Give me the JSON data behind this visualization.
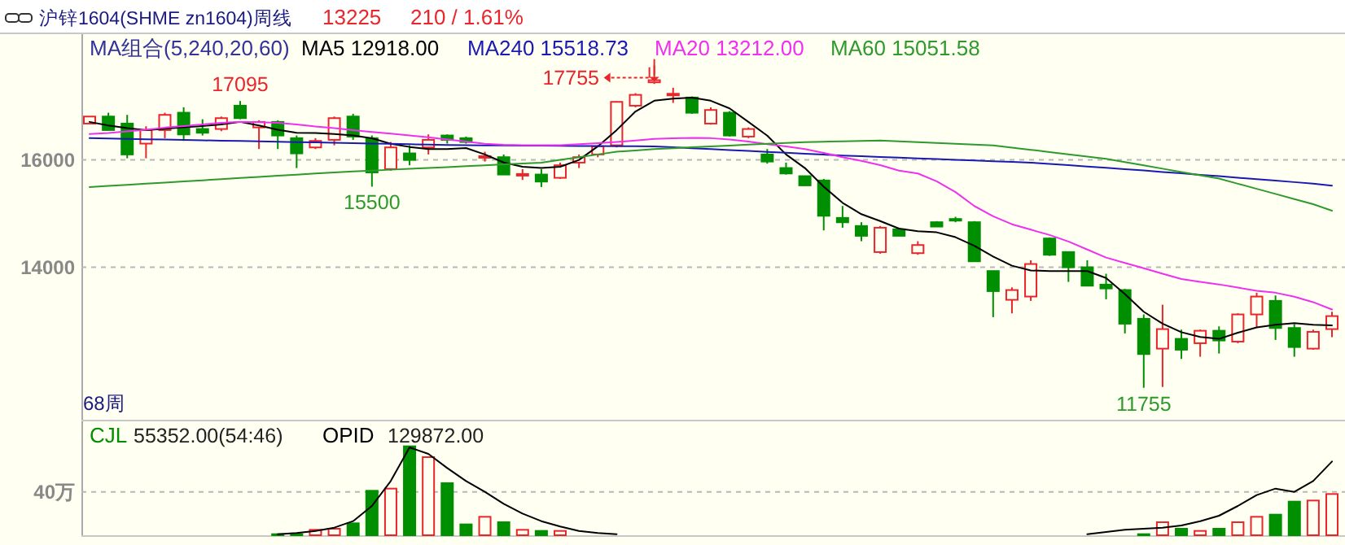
{
  "chart_data": [
    {
      "type": "candlestick",
      "title": "沪锌1604(SHME zn1604)周线",
      "legend_title": "MA组合(5,240,20,60)",
      "legend": "top left",
      "grid": "y",
      "tick_labels": "y",
      "ylim": [
        11160,
        18340
      ],
      "yticks": [
        14000,
        16000
      ],
      "categories": [
        null,
        null,
        null,
        null,
        null,
        null,
        null,
        null,
        null,
        null,
        null,
        null,
        null,
        null,
        null,
        null,
        null,
        null,
        null,
        null,
        null,
        null,
        null,
        null,
        null,
        null,
        null,
        null,
        null,
        null,
        null,
        null,
        null,
        null,
        null,
        null,
        null,
        null,
        null,
        null,
        null,
        null,
        null,
        null,
        null,
        null,
        null,
        null,
        null,
        null,
        null,
        null,
        null,
        null,
        null,
        null,
        null,
        null,
        null,
        null,
        null,
        null,
        null,
        null,
        null,
        null,
        null
      ],
      "ohlc": [
        [
          16675,
          16810,
          16670,
          16806
        ],
        [
          16806,
          16877,
          16554,
          16554
        ],
        [
          16675,
          16837,
          16029,
          16100
        ],
        [
          16302,
          16625,
          16029,
          16554
        ],
        [
          16554,
          16877,
          16403,
          16837
        ],
        [
          16877,
          16978,
          16352,
          16473
        ],
        [
          16574,
          16756,
          16453,
          16504
        ],
        [
          16574,
          16806,
          16534,
          16776
        ],
        [
          17008,
          17095,
          16756,
          16776
        ],
        [
          16604,
          16736,
          16201,
          16705
        ],
        [
          16705,
          16736,
          16201,
          16453
        ],
        [
          16403,
          16453,
          15847,
          16120
        ],
        [
          16231,
          16403,
          16201,
          16352
        ],
        [
          16372,
          16806,
          16271,
          16776
        ],
        [
          16806,
          16857,
          16372,
          16433
        ],
        [
          16403,
          16453,
          15500,
          15766
        ],
        [
          15827,
          16332,
          15797,
          16231
        ],
        [
          16120,
          16271,
          15898,
          15998
        ],
        [
          16231,
          16473,
          16100,
          16372
        ],
        [
          16453,
          16473,
          16302,
          16372
        ],
        [
          16403,
          16433,
          16302,
          16332
        ],
        [
          16049,
          16150,
          15968,
          16069
        ],
        [
          16049,
          16100,
          15726,
          15726
        ],
        [
          15716,
          15827,
          15625,
          15736
        ],
        [
          15726,
          15827,
          15493,
          15595
        ],
        [
          15665,
          15948,
          15645,
          15898
        ],
        [
          15948,
          16100,
          15847,
          16049
        ],
        [
          16100,
          16271,
          16049,
          16251
        ],
        [
          16271,
          17090,
          16231,
          17079
        ],
        [
          17008,
          17241,
          16978,
          17210
        ],
        [
          17443,
          17755,
          17413,
          17483
        ],
        [
          17210,
          17342,
          17059,
          17230
        ],
        [
          17160,
          17180,
          16857,
          16877
        ],
        [
          16675,
          16978,
          16655,
          16928
        ],
        [
          16877,
          16907,
          16433,
          16453
        ],
        [
          16433,
          16604,
          16403,
          16574
        ],
        [
          16100,
          16201,
          15928,
          15968
        ],
        [
          15847,
          15948,
          15726,
          15746
        ],
        [
          15696,
          15696,
          15524,
          15524
        ],
        [
          15615,
          15645,
          14686,
          14958
        ],
        [
          14918,
          15140,
          14736,
          14837
        ],
        [
          14767,
          14838,
          14484,
          14585
        ],
        [
          14282,
          14767,
          14252,
          14736
        ],
        [
          14706,
          14736,
          14585,
          14585
        ],
        [
          14262,
          14484,
          14232,
          14413
        ],
        [
          14838,
          14858,
          14757,
          14757
        ],
        [
          14898,
          14939,
          14838,
          14878
        ],
        [
          14838,
          14858,
          14110,
          14110
        ],
        [
          13929,
          13929,
          13070,
          13555
        ],
        [
          13393,
          13625,
          13141,
          13575
        ],
        [
          13454,
          14130,
          13373,
          14060
        ],
        [
          14535,
          14555,
          14211,
          14232
        ],
        [
          14282,
          14282,
          13727,
          13999
        ],
        [
          13999,
          14130,
          13656,
          13656
        ],
        [
          13676,
          13878,
          13403,
          13605
        ],
        [
          13575,
          13595,
          12767,
          12949
        ],
        [
          13040,
          13121,
          11755,
          12383
        ],
        [
          12484,
          13302,
          11770,
          12848
        ],
        [
          12666,
          12838,
          12292,
          12464
        ],
        [
          12585,
          12838,
          12333,
          12817
        ],
        [
          12817,
          12898,
          12393,
          12636
        ],
        [
          12615,
          13141,
          12585,
          13121
        ],
        [
          13121,
          13525,
          12888,
          13454
        ],
        [
          13373,
          13474,
          12646,
          12868
        ],
        [
          12868,
          12939,
          12333,
          12514
        ],
        [
          12484,
          12838,
          12464,
          12797
        ],
        [
          12848,
          13171,
          12696,
          13090
        ]
      ],
      "series": [
        {
          "type": "line",
          "name": "MA5 12918.00",
          "color": "#000000",
          "values": [
            16706,
            16640,
            16590,
            16554,
            16580,
            16604,
            16630,
            16660,
            16706,
            16640,
            16560,
            16504,
            16500,
            16480,
            16453,
            16400,
            16300,
            16240,
            16201,
            16201,
            16220,
            16100,
            15950,
            15870,
            15847,
            15870,
            15998,
            16251,
            16554,
            16900,
            17100,
            17140,
            17160,
            17100,
            16958,
            16706,
            16450,
            16100,
            15847,
            15500,
            15200,
            14988,
            14860,
            14720,
            14670,
            14650,
            14560,
            14400,
            14200,
            14029,
            13940,
            13929,
            13929,
            13929,
            13800,
            13500,
            13171,
            12950,
            12790,
            12700,
            12666,
            12780,
            12880,
            12930,
            12960,
            12930,
            12918
          ]
        },
        {
          "type": "line",
          "name": "MA240 15518.73",
          "color": "#1a1ab0",
          "values": [
            16403,
            16396,
            16390,
            16383,
            16377,
            16370,
            16363,
            16357,
            16350,
            16343,
            16337,
            16330,
            16324,
            16317,
            16310,
            16304,
            16297,
            16290,
            16284,
            16277,
            16271,
            16269,
            16267,
            16265,
            16263,
            16260,
            16258,
            16256,
            16254,
            16252,
            16250,
            16233,
            16216,
            16199,
            16182,
            16165,
            16148,
            16131,
            16114,
            16097,
            16080,
            16067,
            16054,
            16041,
            16027,
            16014,
            16001,
            15988,
            15974,
            15961,
            15948,
            15924,
            15900,
            15875,
            15851,
            15827,
            15801,
            15774,
            15748,
            15721,
            15695,
            15667,
            15640,
            15612,
            15585,
            15557,
            15519
          ]
        },
        {
          "type": "line",
          "name": "MA20 13212.00",
          "color": "#f030f0",
          "values": [
            16480,
            16500,
            16530,
            16560,
            16600,
            16630,
            16660,
            16690,
            16706,
            16700,
            16690,
            16660,
            16620,
            16590,
            16554,
            16520,
            16490,
            16453,
            16420,
            16380,
            16340,
            16300,
            16280,
            16271,
            16271,
            16271,
            16290,
            16310,
            16332,
            16360,
            16390,
            16400,
            16410,
            16403,
            16380,
            16340,
            16290,
            16251,
            16200,
            16130,
            16049,
            15980,
            15900,
            15800,
            15746,
            15600,
            15400,
            15140,
            14950,
            14800,
            14700,
            14600,
            14480,
            14330,
            14180,
            14080,
            13980,
            13880,
            13780,
            13727,
            13680,
            13620,
            13560,
            13525,
            13450,
            13350,
            13212
          ]
        },
        {
          "type": "line",
          "name": "MA60 15051.58",
          "color": "#2e9a2e",
          "values": [
            15493,
            15514,
            15535,
            15556,
            15577,
            15598,
            15619,
            15640,
            15661,
            15682,
            15703,
            15724,
            15745,
            15766,
            15783,
            15799,
            15816,
            15832,
            15849,
            15865,
            15882,
            15898,
            15915,
            15931,
            15948,
            15998,
            16049,
            16100,
            16150,
            16175,
            16200,
            16216,
            16233,
            16249,
            16265,
            16282,
            16298,
            16314,
            16330,
            16338,
            16345,
            16353,
            16360,
            16345,
            16330,
            16315,
            16300,
            16285,
            16270,
            16228,
            16187,
            16145,
            16103,
            16062,
            16020,
            15958,
            15897,
            15835,
            15773,
            15712,
            15650,
            15555,
            15460,
            15365,
            15270,
            15175,
            15052
          ]
        }
      ],
      "annotations": [
        "13225",
        "210 / 1.61%",
        "68周",
        {
          "text": "17095",
          "y": 17095
        },
        {
          "text": "15500",
          "y": 15500
        },
        "17755",
        {
          "text": "11755",
          "y": 11755
        }
      ]
    },
    {
      "type": "bar",
      "legend": "top left",
      "grid": "y",
      "tick_labels": "y",
      "ylim": [
        0,
        105
      ],
      "yticks": [
        {
          "value": 40,
          "label": "40万"
        }
      ],
      "categories": [
        null,
        null,
        null,
        null,
        null,
        null,
        null,
        null,
        null,
        null,
        null,
        null,
        null,
        null,
        null,
        null,
        null,
        null,
        null,
        null,
        null,
        null,
        null,
        null,
        null,
        null,
        null,
        null,
        null,
        null,
        null,
        null,
        null,
        null,
        null,
        null,
        null,
        null,
        null,
        null,
        null,
        null,
        null,
        null,
        null,
        null,
        null,
        null,
        null,
        null,
        null,
        null,
        null,
        null,
        null,
        null,
        null,
        null,
        null,
        null,
        null,
        null,
        null,
        null,
        null,
        null,
        null
      ],
      "series": [
        {
          "name": "CJL",
          "color": "#008f00",
          "values": [
            null,
            null,
            null,
            null,
            null,
            null,
            null,
            null,
            null,
            null,
            1,
            1,
            5,
            6,
            11,
            41,
            43,
            82,
            72,
            48,
            10,
            17,
            12,
            5,
            4,
            4,
            null,
            null,
            null,
            null,
            null,
            null,
            null,
            null,
            null,
            null,
            null,
            null,
            null,
            null,
            null,
            null,
            null,
            null,
            null,
            null,
            null,
            null,
            null,
            null,
            null,
            null,
            null,
            null,
            null,
            null,
            1,
            12,
            6,
            4,
            6,
            12,
            17,
            19,
            31,
            32,
            38
          ],
          "colors": [
            null,
            null,
            null,
            null,
            null,
            null,
            null,
            null,
            null,
            null,
            "#008f00",
            "#008f00",
            "#e8262b",
            "#e8262b",
            "#008f00",
            "#008f00",
            "#e8262b",
            "#008f00",
            "#e8262b",
            "#008f00",
            "#008f00",
            "#e8262b",
            "#008f00",
            "#e8262b",
            "#008f00",
            "#e8262b",
            null,
            null,
            null,
            null,
            null,
            null,
            null,
            null,
            null,
            null,
            null,
            null,
            null,
            null,
            null,
            null,
            null,
            null,
            null,
            null,
            null,
            null,
            null,
            null,
            null,
            null,
            null,
            null,
            null,
            null,
            "#008f00",
            "#e8262b",
            "#008f00",
            "#e8262b",
            "#008f00",
            "#e8262b",
            "#e8262b",
            "#008f00",
            "#008f00",
            "#e8262b",
            "#e8262b"
          ]
        },
        {
          "type": "line",
          "name": "OPID",
          "color": "#000000",
          "values": [
            null,
            null,
            null,
            null,
            null,
            null,
            null,
            null,
            null,
            null,
            1,
            2,
            4,
            7,
            13,
            27,
            50,
            81,
            75,
            62,
            50,
            40,
            29,
            20,
            13,
            8,
            4,
            2,
            1,
            null,
            null,
            null,
            null,
            null,
            null,
            null,
            null,
            null,
            null,
            null,
            null,
            null,
            null,
            null,
            null,
            null,
            null,
            null,
            null,
            null,
            null,
            null,
            null,
            1,
            3,
            5,
            6,
            7,
            9,
            13,
            18,
            27,
            37,
            43,
            40,
            50,
            68
          ]
        }
      ],
      "annotations": [
        "55352.00(54:46)",
        "129872.00"
      ]
    }
  ]
}
